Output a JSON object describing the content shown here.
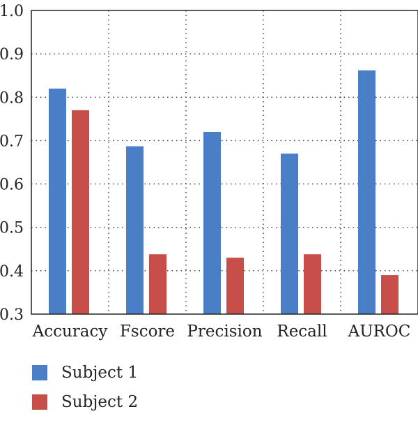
{
  "chart_data": {
    "type": "bar",
    "categories": [
      "Accuracy",
      "Fscore",
      "Precision",
      "Recall",
      "AUROC"
    ],
    "series": [
      {
        "name": "Subject 1",
        "color": "#4a7ec6",
        "values": [
          0.82,
          0.687,
          0.72,
          0.67,
          0.862
        ]
      },
      {
        "name": "Subject 2",
        "color": "#c84e4a",
        "values": [
          0.77,
          0.438,
          0.43,
          0.438,
          0.39
        ]
      }
    ],
    "ylim": [
      0.3,
      1.0
    ],
    "yticks": [
      0.3,
      0.4,
      0.5,
      0.6,
      0.7,
      0.8,
      0.9,
      1.0
    ],
    "ytick_labels": [
      "0.3",
      "0.4",
      "0.5",
      "0.6",
      "0.7",
      "0.8",
      "0.9",
      "1.0"
    ],
    "grid": "dotted",
    "legend_position": "bottom-left"
  }
}
